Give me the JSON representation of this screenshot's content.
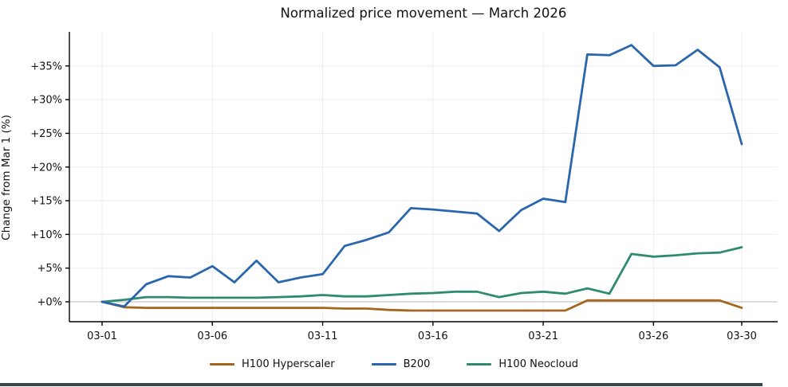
{
  "title": "Normalized price movement — March 2026",
  "ylabel": "Change from Mar 1 (%)",
  "colors": {
    "grid": "#ededed",
    "zero_line": "#c8c8c8",
    "spine": "#000000",
    "tick_text": "#111111",
    "footer_bar": "#37474f"
  },
  "chart_data": {
    "type": "line",
    "title": "Normalized price movement — March 2026",
    "xlabel": "",
    "ylabel": "Change from Mar 1 (%)",
    "ylim": [
      -3,
      40
    ],
    "grid": true,
    "legend_position": "bottom-center",
    "x_unit": "day-of-march",
    "x_days": [
      1,
      2,
      3,
      4,
      5,
      6,
      7,
      8,
      9,
      10,
      11,
      12,
      13,
      14,
      15,
      16,
      17,
      18,
      19,
      20,
      21,
      22,
      23,
      24,
      25,
      26,
      27,
      28,
      29,
      30
    ],
    "x_tick_days": [
      1,
      6,
      11,
      16,
      21,
      26,
      30
    ],
    "x_tick_labels": [
      "03-01",
      "03-06",
      "03-11",
      "03-16",
      "03-21",
      "03-26",
      "03-30"
    ],
    "y_tick_values": [
      0,
      5,
      10,
      15,
      20,
      25,
      30,
      35
    ],
    "y_tick_labels": [
      "+0%",
      "+5%",
      "+10%",
      "+15%",
      "+20%",
      "+25%",
      "+30%",
      "+35%"
    ],
    "series": [
      {
        "name": "H100 Hyperscaler",
        "color": "#a4671f",
        "values": [
          0,
          -0.8,
          -0.9,
          -0.9,
          -0.9,
          -0.9,
          -0.9,
          -0.9,
          -0.9,
          -0.9,
          -0.9,
          -1.0,
          -1.0,
          -1.2,
          -1.3,
          -1.3,
          -1.3,
          -1.3,
          -1.3,
          -1.3,
          -1.3,
          -1.3,
          0.2,
          0.2,
          0.2,
          0.2,
          0.2,
          0.2,
          0.2,
          -0.9
        ]
      },
      {
        "name": "B200",
        "color": "#2a66ad",
        "values": [
          0,
          -0.7,
          2.6,
          3.8,
          3.6,
          5.3,
          2.9,
          6.1,
          2.9,
          3.6,
          4.1,
          8.3,
          9.2,
          10.3,
          13.9,
          13.7,
          13.4,
          13.1,
          10.5,
          13.6,
          15.3,
          14.8,
          36.7,
          36.6,
          38.1,
          35.0,
          35.1,
          37.4,
          34.8,
          23.4
        ]
      },
      {
        "name": "H100 Neocloud",
        "color": "#2e8b6f",
        "values": [
          0,
          0.3,
          0.7,
          0.7,
          0.6,
          0.6,
          0.6,
          0.6,
          0.7,
          0.8,
          1.0,
          0.8,
          0.8,
          1.0,
          1.2,
          1.3,
          1.5,
          1.5,
          0.7,
          1.3,
          1.5,
          1.2,
          2.0,
          1.2,
          7.1,
          6.7,
          6.9,
          7.2,
          7.3,
          8.1
        ]
      }
    ]
  }
}
